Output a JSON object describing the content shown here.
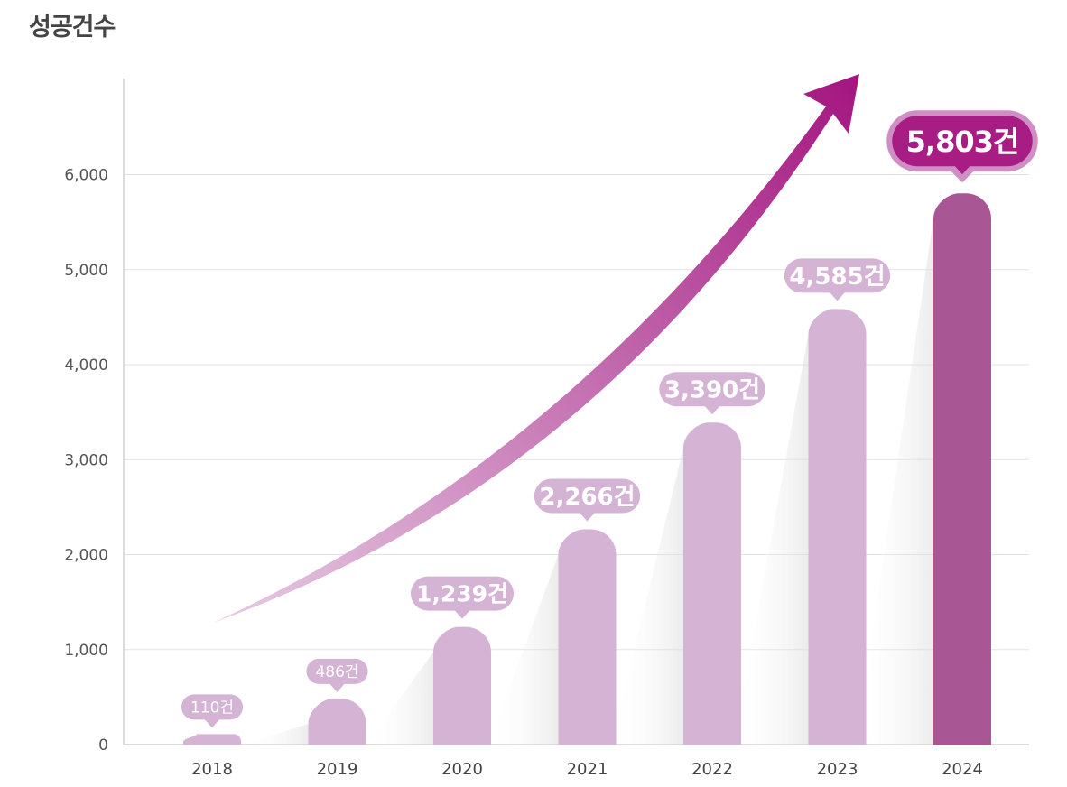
{
  "chart_data": {
    "type": "bar",
    "title": "성공건수",
    "categories": [
      "2018",
      "2019",
      "2020",
      "2021",
      "2022",
      "2023",
      "2024"
    ],
    "values": [
      110,
      486,
      1239,
      2266,
      3390,
      4585,
      5803
    ],
    "data_labels": [
      "110건",
      "486건",
      "1,239건",
      "2,266건",
      "3,390건",
      "4,585건",
      "5,803건"
    ],
    "yticks": [
      "0",
      "1,000",
      "2,000",
      "3,000",
      "4,000",
      "5,000",
      "6,000"
    ],
    "ytick_values": [
      0,
      1000,
      2000,
      3000,
      4000,
      5000,
      6000
    ],
    "ylim": [
      0,
      7000
    ],
    "grid": true,
    "legend": "none",
    "colors": {
      "bar": "#d5b3d5",
      "highlight_bar": "#a85794",
      "label_bg": "#d5b3d5",
      "highlight_label_bg": "#a81d83",
      "highlight_label_ring": "#cf8fc4",
      "label_text": "#ffffff",
      "arrow_start": "#e6cde4",
      "arrow_end": "#a3157f",
      "grid": "#e3e3e3",
      "axis": "#d0d0d0"
    }
  }
}
